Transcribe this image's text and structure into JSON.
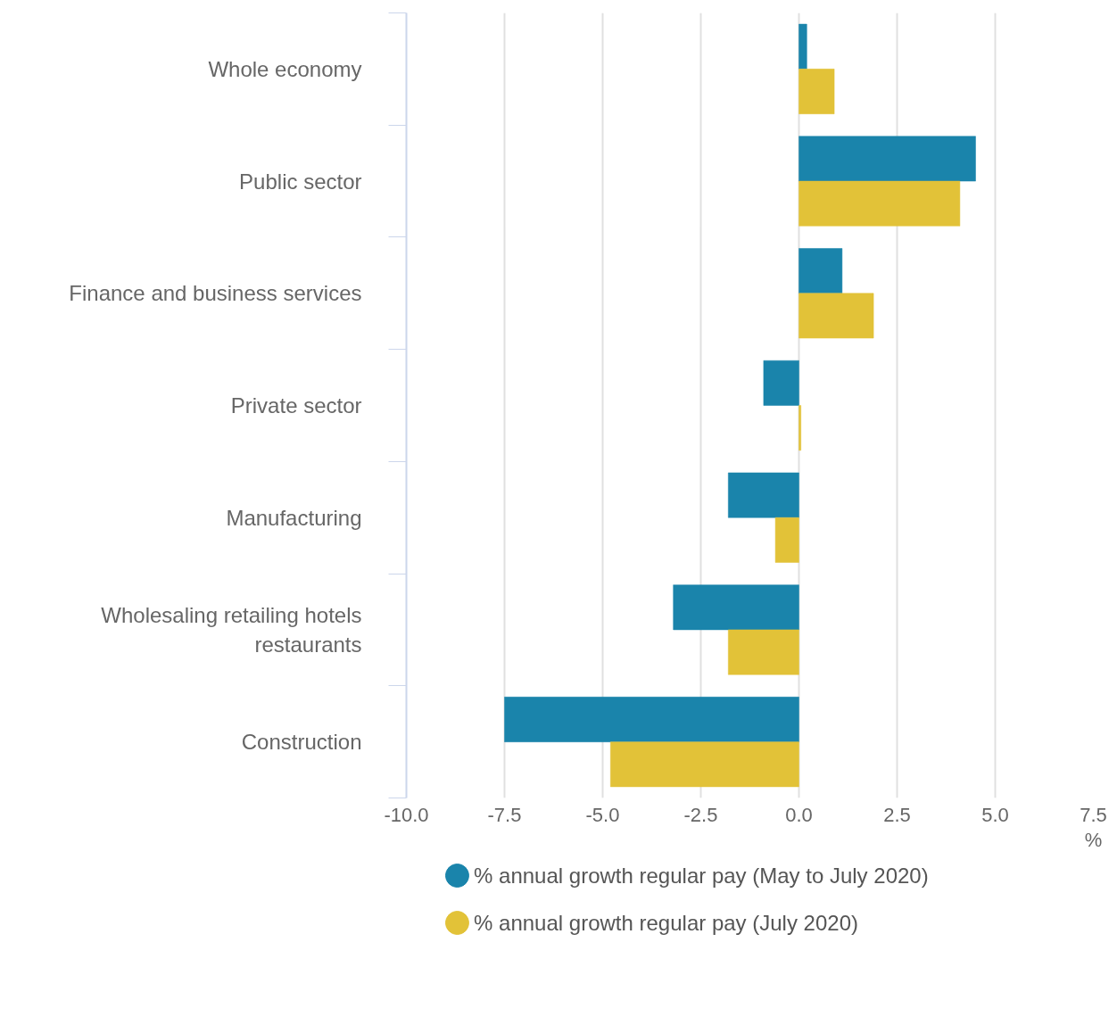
{
  "chart_data": {
    "type": "bar",
    "orientation": "horizontal",
    "categories": [
      "Whole economy",
      "Public sector",
      "Finance and business services",
      "Private sector",
      "Manufacturing",
      "Wholesaling retailing hotels restaurants",
      "Construction"
    ],
    "series": [
      {
        "name": "% annual growth regular pay (May to July 2020)",
        "color": "#1a84ab",
        "values": [
          0.2,
          4.5,
          1.1,
          -0.9,
          -1.8,
          -3.2,
          -7.5
        ]
      },
      {
        "name": "% annual growth regular pay (July 2020)",
        "color": "#e2c238",
        "values": [
          0.9,
          4.1,
          1.9,
          0.05,
          -0.6,
          -1.8,
          -4.8
        ]
      }
    ],
    "xlabel": "%",
    "xlim": [
      -10,
      7.5
    ],
    "xticks": [
      {
        "value": -10,
        "label": "-10.0"
      },
      {
        "value": -7.5,
        "label": "-7.5"
      },
      {
        "value": -5,
        "label": "-5.0"
      },
      {
        "value": -2.5,
        "label": "-2.5"
      },
      {
        "value": 0,
        "label": "0.0"
      },
      {
        "value": 2.5,
        "label": "2.5"
      },
      {
        "value": 5,
        "label": "5.0"
      },
      {
        "value": 7.5,
        "label": "7.5"
      }
    ],
    "grid": "x",
    "legend": "bottom"
  }
}
